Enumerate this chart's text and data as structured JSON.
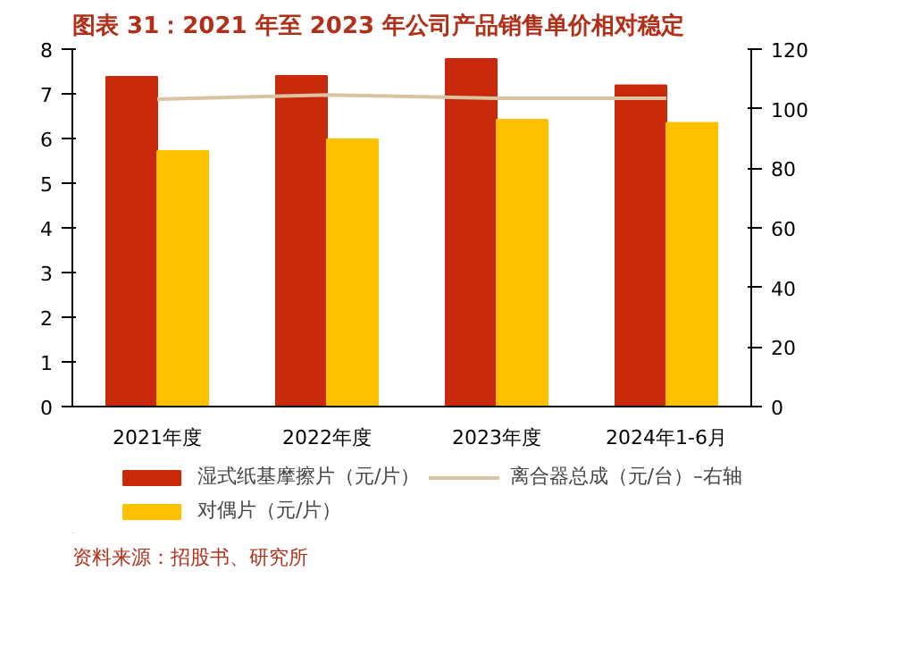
{
  "chart_data": {
    "type": "bar",
    "title": "图表 31：2021 年至 2023 年公司产品销售单价相对稳定",
    "categories": [
      "2021年度",
      "2022年度",
      "2023年度",
      "2024年1-6月"
    ],
    "series": [
      {
        "name": "湿式纸基摩擦片（元/片）",
        "color": "#c8290b",
        "values": [
          7.38,
          7.4,
          7.78,
          7.19
        ]
      },
      {
        "name": "对偶片（元/片）",
        "color": "#ffc000",
        "values": [
          5.72,
          5.98,
          6.42,
          6.35
        ]
      },
      {
        "name": "离合器总成（元/台）–右轴",
        "type": "line",
        "axis": "y2",
        "color": "#d9c3a0",
        "values": [
          103.2,
          104.6,
          103.5,
          103.5
        ]
      }
    ],
    "ylim": [
      0,
      8
    ],
    "yticks": [
      0,
      1,
      2,
      3,
      4,
      5,
      6,
      7,
      8
    ],
    "y2lim": [
      0,
      120
    ],
    "y2ticks": [
      0,
      20,
      40,
      60,
      80,
      100,
      120
    ],
    "grid": false,
    "legend": "bottom",
    "annotations": [
      "资料来源：招股书、研究所"
    ]
  }
}
